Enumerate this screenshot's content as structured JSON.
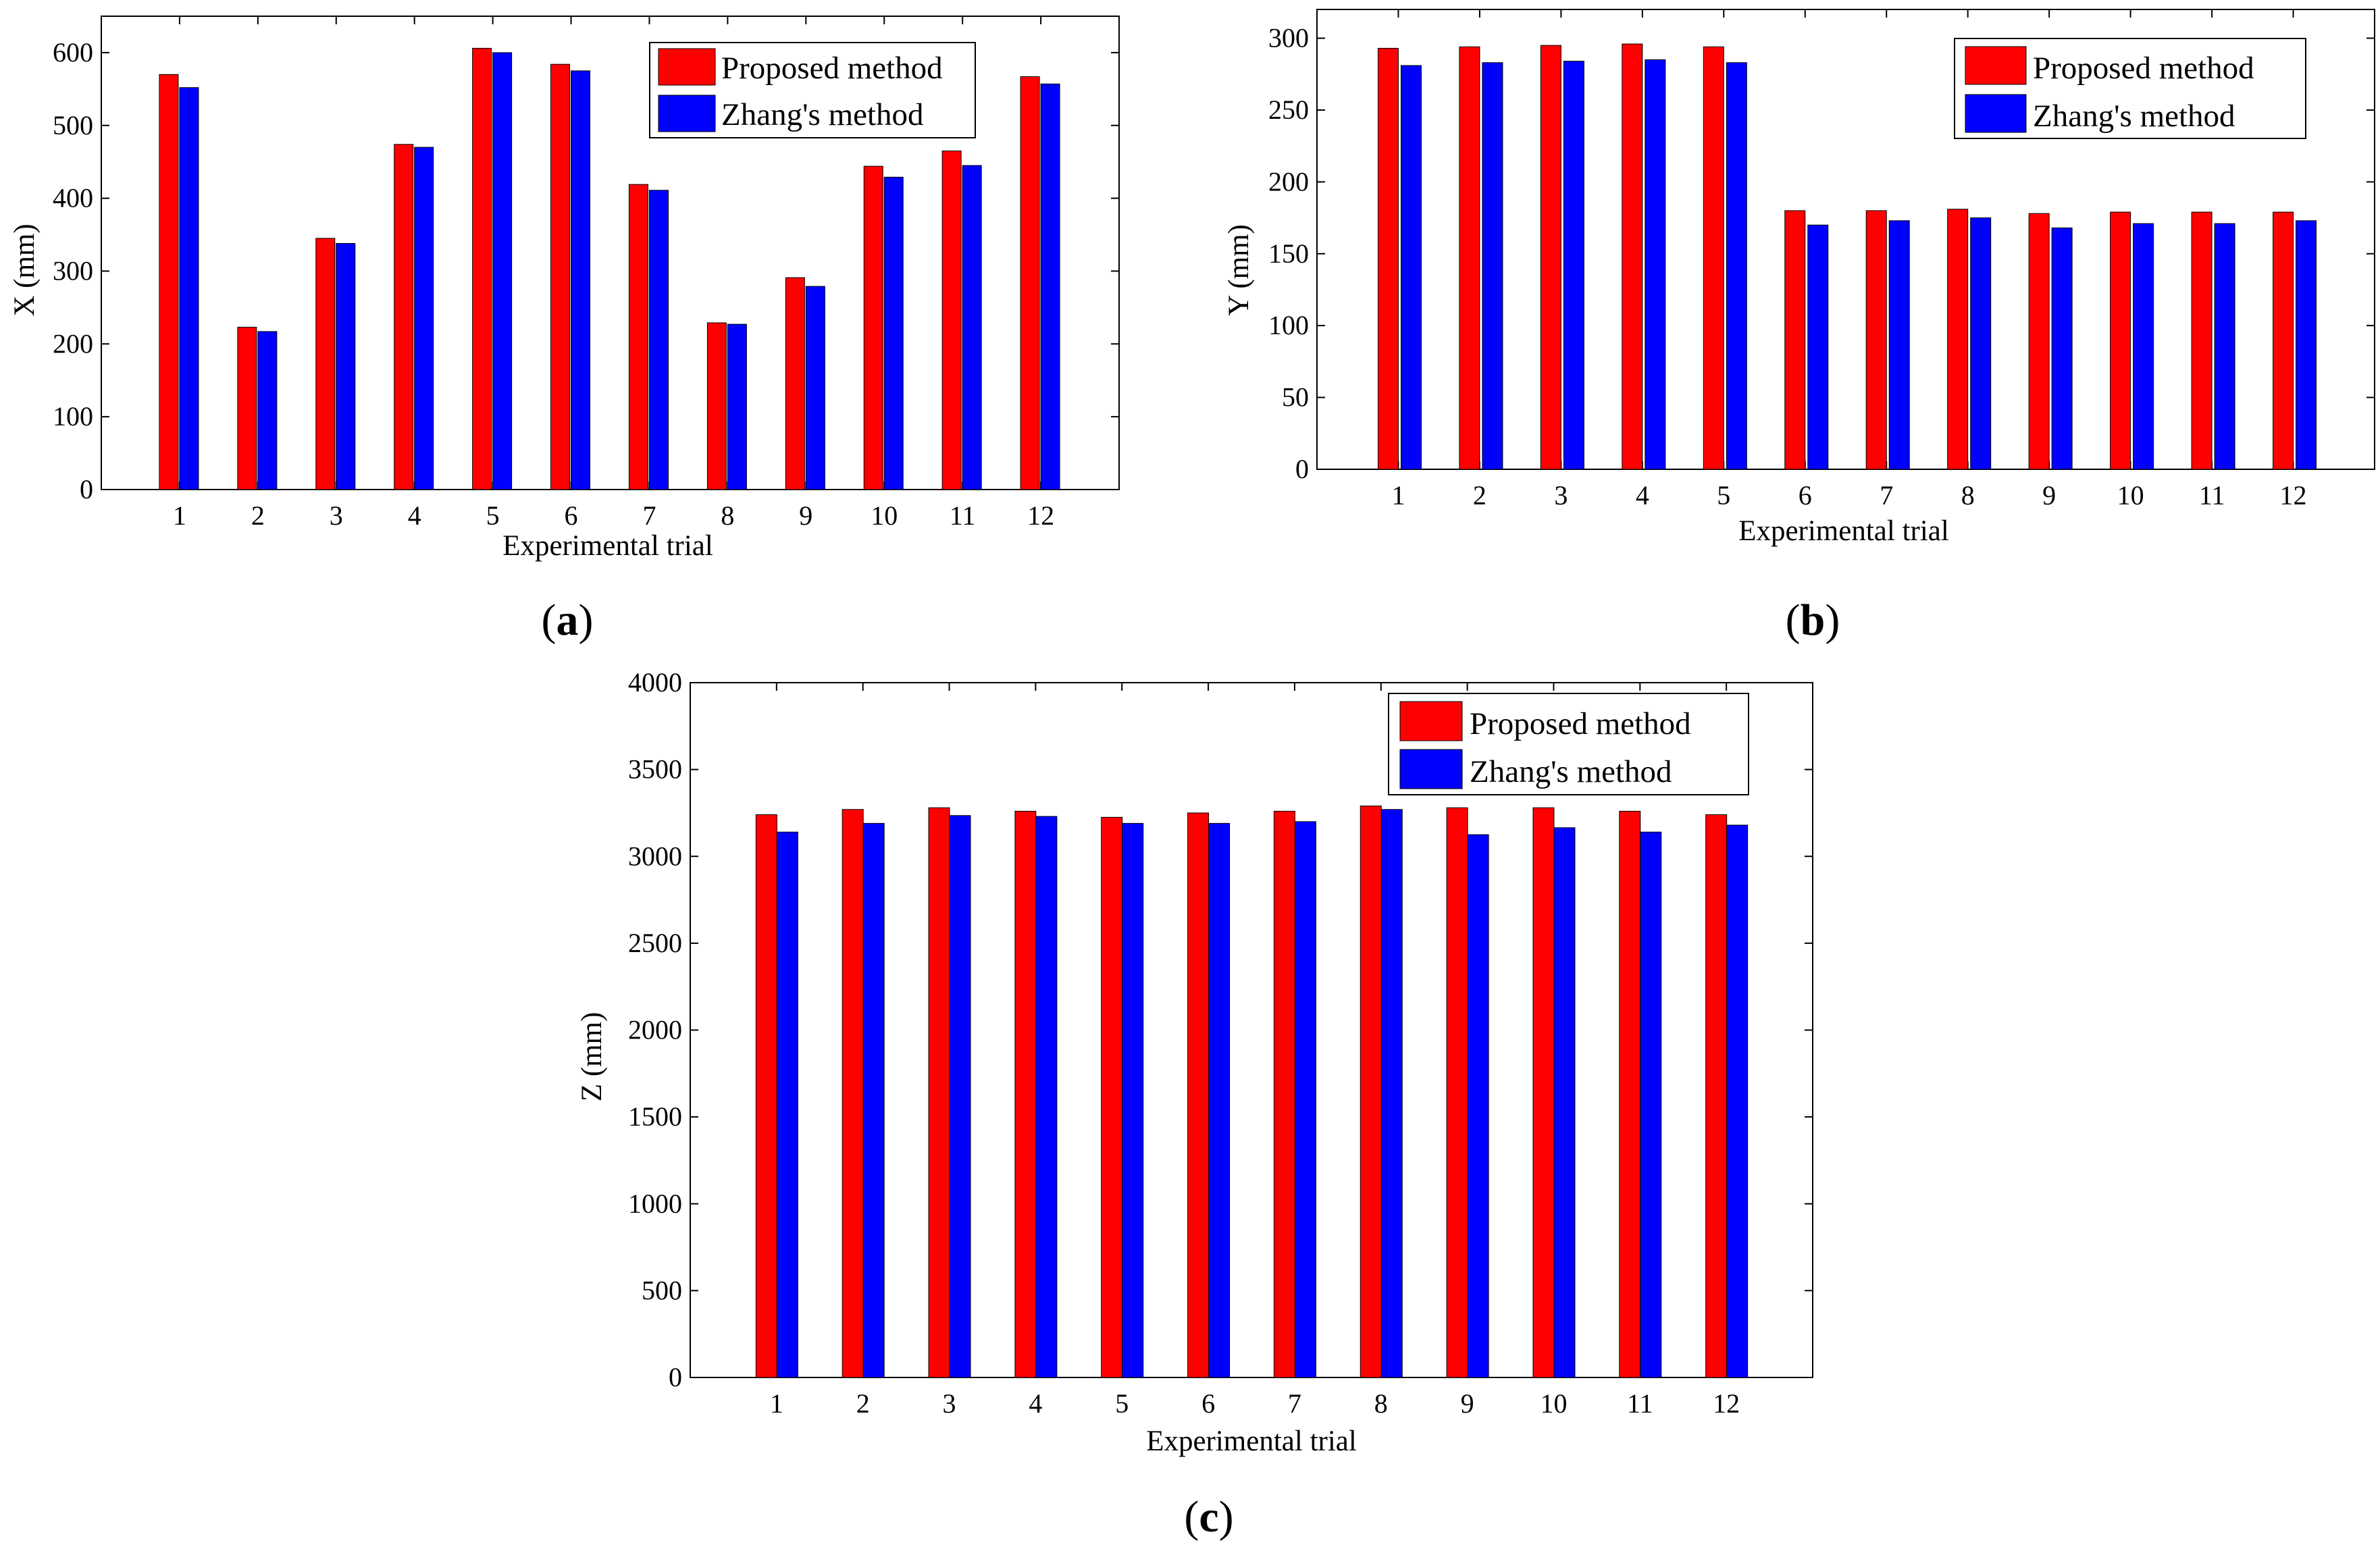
{
  "figure": {
    "panels": [
      {
        "id": "a",
        "label_open": "(",
        "label_letter": "a",
        "label_close": ")"
      },
      {
        "id": "b",
        "label_open": "(",
        "label_letter": "b",
        "label_close": ")"
      },
      {
        "id": "c",
        "label_open": "(",
        "label_letter": "c",
        "label_close": ")"
      }
    ]
  },
  "chart_data": [
    {
      "id": "a",
      "type": "bar",
      "title": "",
      "xlabel": "Experimental trial",
      "ylabel": "X (mm)",
      "categories": [
        "1",
        "2",
        "3",
        "4",
        "5",
        "6",
        "7",
        "8",
        "9",
        "10",
        "11",
        "12"
      ],
      "ylim": [
        0,
        650
      ],
      "yticks": [
        0,
        100,
        200,
        300,
        400,
        500,
        600
      ],
      "legend_position": "top-right",
      "series": [
        {
          "name": "Proposed method",
          "color": "#ff0000",
          "values": [
            570,
            223,
            345,
            474,
            606,
            584,
            419,
            229,
            291,
            444,
            465,
            567
          ]
        },
        {
          "name": "Zhang's method",
          "color": "#0000ff",
          "values": [
            552,
            217,
            338,
            470,
            600,
            575,
            411,
            227,
            279,
            429,
            445,
            557
          ]
        }
      ]
    },
    {
      "id": "b",
      "type": "bar",
      "title": "",
      "xlabel": "Experimental trial",
      "ylabel": "Y (mm)",
      "categories": [
        "1",
        "2",
        "3",
        "4",
        "5",
        "6",
        "7",
        "8",
        "9",
        "10",
        "11",
        "12"
      ],
      "ylim": [
        0,
        320
      ],
      "yticks": [
        0,
        50,
        100,
        150,
        200,
        250,
        300
      ],
      "legend_position": "top-right",
      "series": [
        {
          "name": "Proposed method",
          "color": "#ff0000",
          "values": [
            293,
            294,
            295,
            296,
            294,
            180,
            180,
            181,
            178,
            179,
            179,
            179
          ]
        },
        {
          "name": "Zhang's method",
          "color": "#0000ff",
          "values": [
            281,
            283,
            284,
            285,
            283,
            170,
            173,
            175,
            168,
            171,
            171,
            173
          ]
        }
      ]
    },
    {
      "id": "c",
      "type": "bar",
      "title": "",
      "xlabel": "Experimental trial",
      "ylabel": "Z (mm)",
      "categories": [
        "1",
        "2",
        "3",
        "4",
        "5",
        "6",
        "7",
        "8",
        "9",
        "10",
        "11",
        "12"
      ],
      "ylim": [
        0,
        4000
      ],
      "yticks": [
        0,
        500,
        1000,
        1500,
        2000,
        2500,
        3000,
        3500,
        4000
      ],
      "legend_position": "top-right",
      "series": [
        {
          "name": "Proposed method",
          "color": "#ff0000",
          "values": [
            3240,
            3270,
            3280,
            3260,
            3225,
            3250,
            3260,
            3290,
            3280,
            3280,
            3260,
            3240
          ]
        },
        {
          "name": "Zhang's method",
          "color": "#0000ff",
          "values": [
            3140,
            3190,
            3235,
            3230,
            3190,
            3190,
            3200,
            3270,
            3125,
            3165,
            3140,
            3180
          ]
        }
      ]
    }
  ]
}
